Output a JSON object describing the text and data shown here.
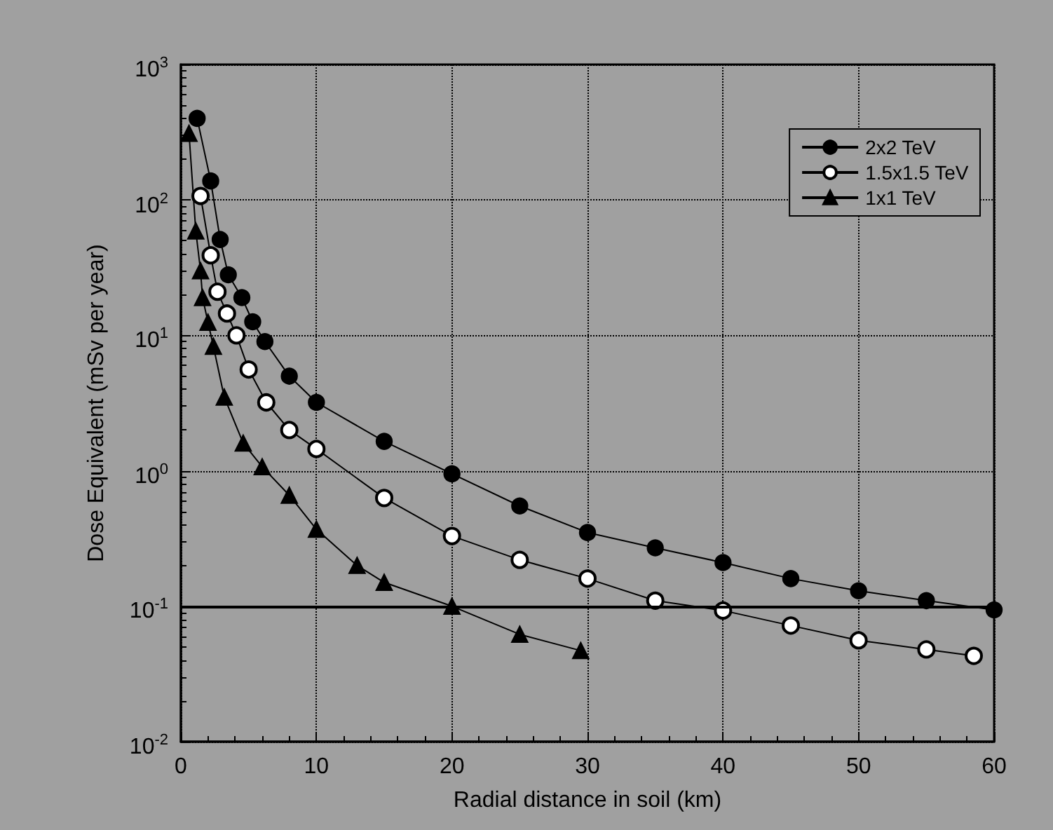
{
  "chart_data": {
    "type": "line",
    "xlabel": "Radial distance in soil (km)",
    "ylabel": "Dose Equivalent (mSv per year)",
    "xlim": [
      0,
      60
    ],
    "xticks": [
      0,
      10,
      20,
      30,
      40,
      50,
      60
    ],
    "ylim": [
      0.01,
      1000
    ],
    "yticks": [
      {
        "value": 0.01,
        "label": "10$^{-2}$"
      },
      {
        "value": 0.1,
        "label": "10$^{-1}$"
      },
      {
        "value": 1,
        "label": "10$^{0}$"
      },
      {
        "value": 10,
        "label": "10$^{1}$"
      },
      {
        "value": 100,
        "label": "10$^{2}$"
      },
      {
        "value": 1000,
        "label": "10$^{3}$"
      }
    ],
    "log": "y",
    "grid": true,
    "legend": "top right",
    "line_style": "solid",
    "ref_lines": [
      {
        "axis": "y",
        "value": 0.1,
        "color": "#000000",
        "line_style": "solid"
      }
    ],
    "series": [
      {
        "name": "2x2 TeV",
        "color": "#000000",
        "marker": "circle",
        "x": [
          1.2,
          2.2,
          2.9,
          3.5,
          4.5,
          5.3,
          6.2,
          8,
          10,
          15,
          20,
          25,
          30,
          35,
          40,
          45,
          50,
          55,
          60
        ],
        "values": [
          400,
          138,
          51,
          28,
          19,
          12.6,
          9,
          5,
          3.2,
          1.65,
          0.95,
          0.55,
          0.35,
          0.27,
          0.21,
          0.16,
          0.13,
          0.11,
          0.094
        ]
      },
      {
        "name": "1.5x1.5 TeV",
        "color": "#000000",
        "marker": "circle-open",
        "x": [
          1.45,
          2.2,
          2.7,
          3.4,
          4.1,
          5,
          6.3,
          8,
          10,
          15,
          20,
          25,
          30,
          35,
          40,
          45,
          50,
          55,
          58.5
        ],
        "values": [
          107,
          39,
          21,
          14.5,
          10,
          5.6,
          3.2,
          2.0,
          1.45,
          0.63,
          0.33,
          0.22,
          0.16,
          0.11,
          0.093,
          0.072,
          0.056,
          0.048,
          0.043
        ]
      },
      {
        "name": "1x1 TeV",
        "color": "#000000",
        "marker": "triangle",
        "x": [
          0.6,
          1.1,
          1.45,
          1.6,
          2.0,
          2.4,
          3.2,
          4.6,
          6,
          8,
          10,
          13,
          15,
          20,
          25,
          29.5
        ],
        "values": [
          310,
          59,
          30,
          19,
          12.5,
          8.3,
          3.5,
          1.6,
          1.07,
          0.66,
          0.37,
          0.2,
          0.15,
          0.1,
          0.062,
          0.047
        ]
      }
    ]
  }
}
